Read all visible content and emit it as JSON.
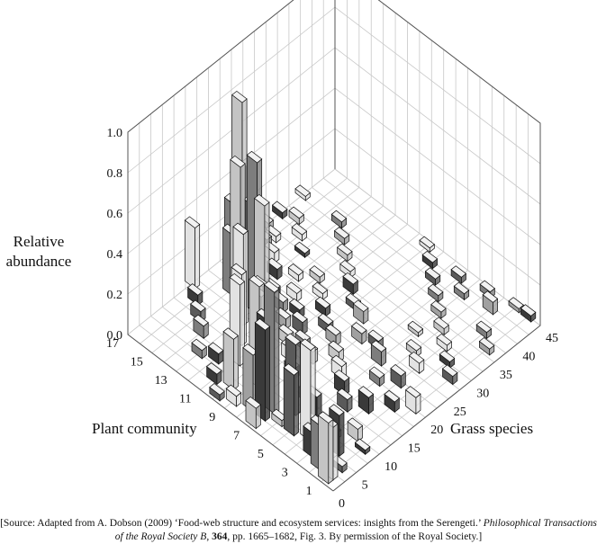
{
  "chart_data": {
    "type": "bar3d",
    "title": "",
    "ylabel_line1": "Relative",
    "ylabel_line2": "abundance",
    "xlabel": "Plant community",
    "zlabel": "Grass species",
    "ylim": [
      0,
      1.0
    ],
    "y_ticks": [
      "0.0",
      "0.2",
      "0.4",
      "0.6",
      "0.8",
      "1.0"
    ],
    "x_ticks": [
      "1",
      "3",
      "5",
      "7",
      "9",
      "11",
      "13",
      "15",
      "17"
    ],
    "z_ticks": [
      "0",
      "5",
      "10",
      "15",
      "20",
      "25",
      "30",
      "35",
      "40",
      "45"
    ],
    "grid": true,
    "bars": [
      {
        "community": 1,
        "species": 1,
        "value": 0.3
      },
      {
        "community": 1,
        "species": 2,
        "value": 0.26
      },
      {
        "community": 2,
        "species": 2,
        "value": 0.22
      },
      {
        "community": 1,
        "species": 4,
        "value": 0.03
      },
      {
        "community": 2,
        "species": 6,
        "value": 0.2
      },
      {
        "community": 3,
        "species": 3,
        "value": 0.12
      },
      {
        "community": 3,
        "species": 8,
        "value": 0.03
      },
      {
        "community": 1,
        "species": 9,
        "value": 0.02
      },
      {
        "community": 2,
        "species": 10,
        "value": 0.06
      },
      {
        "community": 4,
        "species": 5,
        "value": 0.45
      },
      {
        "community": 4,
        "species": 6,
        "value": 0.03
      },
      {
        "community": 5,
        "species": 4,
        "value": 0.3
      },
      {
        "community": 5,
        "species": 9,
        "value": 0.1
      },
      {
        "community": 6,
        "species": 4,
        "value": 0.03
      },
      {
        "community": 6,
        "species": 7,
        "value": 0.35
      },
      {
        "community": 6,
        "species": 10,
        "value": 0.05
      },
      {
        "community": 7,
        "species": 1,
        "value": 0.1
      },
      {
        "community": 7,
        "species": 5,
        "value": 0.6
      },
      {
        "community": 7,
        "species": 3,
        "value": 0.45
      },
      {
        "community": 8,
        "species": 3,
        "value": 0.28
      },
      {
        "community": 8,
        "species": 6,
        "value": 0.4
      },
      {
        "community": 8,
        "species": 12,
        "value": 0.05
      },
      {
        "community": 9,
        "species": 2,
        "value": 0.05
      },
      {
        "community": 9,
        "species": 7,
        "value": 0.5
      },
      {
        "community": 9,
        "species": 14,
        "value": 0.06
      },
      {
        "community": 10,
        "species": 1,
        "value": 0.03
      },
      {
        "community": 10,
        "species": 4,
        "value": 0.25
      },
      {
        "community": 10,
        "species": 10,
        "value": 0.35
      },
      {
        "community": 10,
        "species": 16,
        "value": 0.05
      },
      {
        "community": 11,
        "species": 3,
        "value": 0.05
      },
      {
        "community": 11,
        "species": 8,
        "value": 0.4
      },
      {
        "community": 11,
        "species": 13,
        "value": 0.3
      },
      {
        "community": 11,
        "species": 18,
        "value": 0.05
      },
      {
        "community": 12,
        "species": 6,
        "value": 0.05
      },
      {
        "community": 12,
        "species": 11,
        "value": 0.35
      },
      {
        "community": 12,
        "species": 16,
        "value": 0.6
      },
      {
        "community": 12,
        "species": 20,
        "value": 0.05
      },
      {
        "community": 13,
        "species": 5,
        "value": 0.04
      },
      {
        "community": 13,
        "species": 14,
        "value": 0.45
      },
      {
        "community": 13,
        "species": 17,
        "value": 0.75
      },
      {
        "community": 13,
        "species": 21,
        "value": 0.05
      },
      {
        "community": 14,
        "species": 8,
        "value": 0.06
      },
      {
        "community": 14,
        "species": 16,
        "value": 0.7
      },
      {
        "community": 14,
        "species": 19,
        "value": 0.45
      },
      {
        "community": 14,
        "species": 24,
        "value": 0.05
      },
      {
        "community": 15,
        "species": 10,
        "value": 0.05
      },
      {
        "community": 15,
        "species": 17,
        "value": 0.3
      },
      {
        "community": 15,
        "species": 19,
        "value": 0.92
      },
      {
        "community": 15,
        "species": 21,
        "value": 0.55
      },
      {
        "community": 15,
        "species": 26,
        "value": 0.05
      },
      {
        "community": 16,
        "species": 12,
        "value": 0.05
      },
      {
        "community": 16,
        "species": 20,
        "value": 0.35
      },
      {
        "community": 16,
        "species": 22,
        "value": 0.25
      },
      {
        "community": 16,
        "species": 27,
        "value": 0.05
      },
      {
        "community": 17,
        "species": 14,
        "value": 0.3
      },
      {
        "community": 17,
        "species": 23,
        "value": 0.05
      },
      {
        "community": 17,
        "species": 26,
        "value": 0.04
      },
      {
        "community": 17,
        "species": 30,
        "value": 0.03
      },
      {
        "community": 1,
        "species": 20,
        "value": 0.08
      },
      {
        "community": 2,
        "species": 18,
        "value": 0.05
      },
      {
        "community": 3,
        "species": 22,
        "value": 0.06
      },
      {
        "community": 4,
        "species": 20,
        "value": 0.04
      },
      {
        "community": 5,
        "species": 23,
        "value": 0.07
      },
      {
        "community": 6,
        "species": 25,
        "value": 0.04
      },
      {
        "community": 7,
        "species": 24,
        "value": 0.05
      },
      {
        "community": 8,
        "species": 27,
        "value": 0.06
      },
      {
        "community": 9,
        "species": 28,
        "value": 0.03
      },
      {
        "community": 10,
        "species": 30,
        "value": 0.05
      },
      {
        "community": 11,
        "species": 32,
        "value": 0.03
      },
      {
        "community": 12,
        "species": 34,
        "value": 0.03
      },
      {
        "community": 13,
        "species": 36,
        "value": 0.03
      },
      {
        "community": 14,
        "species": 38,
        "value": 0.03
      },
      {
        "community": 1,
        "species": 28,
        "value": 0.04
      },
      {
        "community": 2,
        "species": 30,
        "value": 0.03
      },
      {
        "community": 3,
        "species": 32,
        "value": 0.03
      },
      {
        "community": 4,
        "species": 34,
        "value": 0.03
      },
      {
        "community": 5,
        "species": 36,
        "value": 0.03
      },
      {
        "community": 6,
        "species": 38,
        "value": 0.03
      },
      {
        "community": 7,
        "species": 40,
        "value": 0.03
      },
      {
        "community": 8,
        "species": 42,
        "value": 0.03
      },
      {
        "community": 9,
        "species": 44,
        "value": 0.02
      },
      {
        "community": 3,
        "species": 42,
        "value": 0.06
      },
      {
        "community": 4,
        "species": 44,
        "value": 0.03
      },
      {
        "community": 5,
        "species": 41,
        "value": 0.03
      },
      {
        "community": 6,
        "species": 43,
        "value": 0.03
      },
      {
        "community": 2,
        "species": 45,
        "value": 0.02
      },
      {
        "community": 1,
        "species": 45,
        "value": 0.03
      },
      {
        "community": 2,
        "species": 38,
        "value": 0.03
      },
      {
        "community": 1,
        "species": 36,
        "value": 0.03
      },
      {
        "community": 4,
        "species": 28,
        "value": 0.03
      },
      {
        "community": 5,
        "species": 31,
        "value": 0.02
      },
      {
        "community": 3,
        "species": 26,
        "value": 0.05
      },
      {
        "community": 3,
        "species": 15,
        "value": 0.08
      },
      {
        "community": 4,
        "species": 13,
        "value": 0.06
      },
      {
        "community": 5,
        "species": 15,
        "value": 0.07
      },
      {
        "community": 6,
        "species": 17,
        "value": 0.06
      },
      {
        "community": 7,
        "species": 19,
        "value": 0.05
      },
      {
        "community": 8,
        "species": 21,
        "value": 0.05
      },
      {
        "community": 9,
        "species": 22,
        "value": 0.04
      },
      {
        "community": 10,
        "species": 24,
        "value": 0.04
      },
      {
        "community": 11,
        "species": 26,
        "value": 0.03
      },
      {
        "community": 12,
        "species": 28,
        "value": 0.03
      },
      {
        "community": 16,
        "species": 34,
        "value": 0.03
      },
      {
        "community": 17,
        "species": 38,
        "value": 0.02
      },
      {
        "community": 15,
        "species": 32,
        "value": 0.03
      },
      {
        "community": 16,
        "species": 29,
        "value": 0.03
      },
      {
        "community": 17,
        "species": 33,
        "value": 0.03
      },
      {
        "community": 14,
        "species": 30,
        "value": 0.02
      },
      {
        "community": 13,
        "species": 26,
        "value": 0.03
      },
      {
        "community": 8,
        "species": 16,
        "value": 0.06
      },
      {
        "community": 9,
        "species": 17,
        "value": 0.05
      },
      {
        "community": 10,
        "species": 19,
        "value": 0.06
      },
      {
        "community": 11,
        "species": 21,
        "value": 0.04
      },
      {
        "community": 12,
        "species": 23,
        "value": 0.04
      }
    ]
  },
  "source": {
    "prefix": "[Source: Adapted from A. Dobson (2009) ‘Food-web structure and ecosystem services: insights from the Serengeti.’ ",
    "journal": "Philosophical Transactions of the Royal Society B",
    "middle": ", ",
    "volume": "364",
    "suffix": ", pp. 1665–1682, Fig. 3. By permission of the Royal Society.]"
  }
}
